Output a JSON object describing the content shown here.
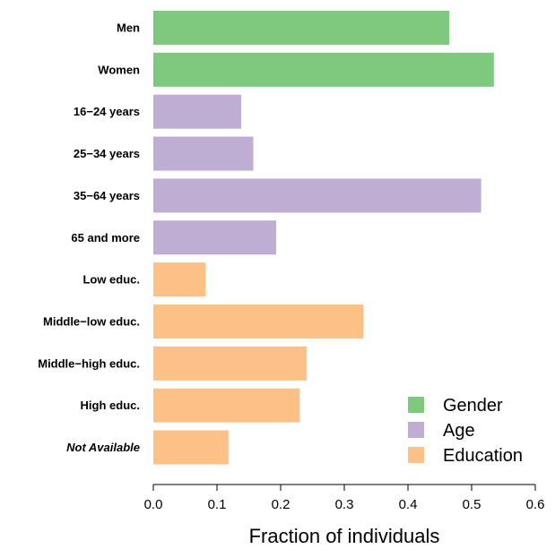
{
  "chart_data": {
    "type": "bar",
    "orientation": "horizontal",
    "xlabel": "Fraction of individuals",
    "xlim": [
      0.0,
      0.6
    ],
    "xticks": [
      "0.0",
      "0.1",
      "0.2",
      "0.3",
      "0.4",
      "0.5",
      "0.6"
    ],
    "grid": false,
    "legend_position": "bottom-right",
    "categories": [
      {
        "label": "Men",
        "value": 0.465,
        "group": "Gender",
        "italic": false
      },
      {
        "label": "Women",
        "value": 0.535,
        "group": "Gender",
        "italic": false
      },
      {
        "label": "16−24 years",
        "value": 0.138,
        "group": "Age",
        "italic": false
      },
      {
        "label": "25−34 years",
        "value": 0.157,
        "group": "Age",
        "italic": false
      },
      {
        "label": "35−64 years",
        "value": 0.515,
        "group": "Age",
        "italic": false
      },
      {
        "label": "65 and more",
        "value": 0.193,
        "group": "Age",
        "italic": false
      },
      {
        "label": "Low educ.",
        "value": 0.082,
        "group": "Education",
        "italic": false
      },
      {
        "label": "Middle−low educ.",
        "value": 0.33,
        "group": "Education",
        "italic": false
      },
      {
        "label": "Middle−high educ.",
        "value": 0.241,
        "group": "Education",
        "italic": false
      },
      {
        "label": "High educ.",
        "value": 0.23,
        "group": "Education",
        "italic": false
      },
      {
        "label": "Not Available",
        "value": 0.118,
        "group": "Education",
        "italic": true
      }
    ],
    "legend": [
      {
        "name": "Gender",
        "color": "#7fc97f"
      },
      {
        "name": "Age",
        "color": "#beaed4"
      },
      {
        "name": "Education",
        "color": "#fdc086"
      }
    ]
  }
}
